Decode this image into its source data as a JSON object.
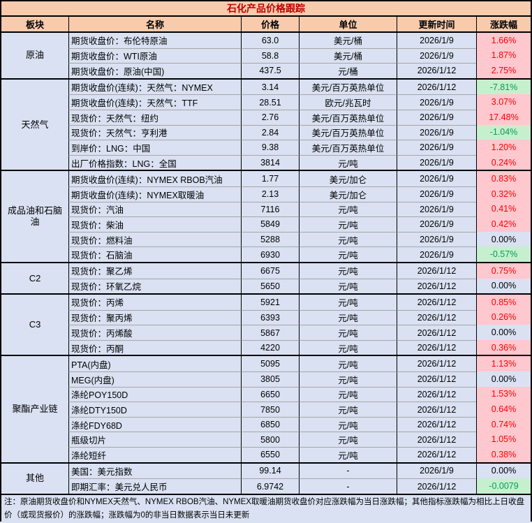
{
  "title": "石化产品价格跟踪",
  "columns": [
    "板块",
    "名称",
    "价格",
    "单位",
    "更新时间",
    "涨跌幅"
  ],
  "colors": {
    "header_bg": "#F8CBAD",
    "title_text": "#C00000",
    "body_bg": "#D9E1F2",
    "up_bg": "#FFC7CE",
    "up_text": "#FF0000",
    "down_bg": "#C6EFCE",
    "down_text": "#00A050",
    "border": "#000000",
    "row_line": "#A6A6A6"
  },
  "sections": [
    {
      "sector": "原油",
      "rows": [
        {
          "name": "期货收盘价：布伦特原油",
          "price": "63.0",
          "unit": "美元/桶",
          "updated": "2026/1/9",
          "change": "1.66%",
          "trend": "pos"
        },
        {
          "name": "期货收盘价：WTI原油",
          "price": "58.8",
          "unit": "美元/桶",
          "updated": "2026/1/9",
          "change": "1.87%",
          "trend": "pos"
        },
        {
          "name": "期货收盘价：原油(中国)",
          "price": "437.5",
          "unit": "元/桶",
          "updated": "2026/1/12",
          "change": "2.75%",
          "trend": "pos"
        }
      ]
    },
    {
      "sector": "天然气",
      "rows": [
        {
          "name": "期货收盘价(连续)：天然气：NYMEX",
          "price": "3.14",
          "unit": "美元/百万英热单位",
          "updated": "2026/1/12",
          "change": "-7.81%",
          "trend": "neg"
        },
        {
          "name": "期货收盘价(连续)：天然气：TTF",
          "price": "28.51",
          "unit": "欧元/兆瓦时",
          "updated": "2026/1/9",
          "change": "3.07%",
          "trend": "pos"
        },
        {
          "name": "现货价：天然气：纽约",
          "price": "2.76",
          "unit": "美元/百万英热单位",
          "updated": "2026/1/9",
          "change": "17.48%",
          "trend": "pos"
        },
        {
          "name": "现货价：天然气：亨利港",
          "price": "2.84",
          "unit": "美元/百万英热单位",
          "updated": "2026/1/9",
          "change": "-1.04%",
          "trend": "neg"
        },
        {
          "name": "到岸价：LNG：中国",
          "price": "9.38",
          "unit": "美元/百万英热单位",
          "updated": "2026/1/9",
          "change": "1.20%",
          "trend": "pos"
        },
        {
          "name": "出厂价格指数：LNG：全国",
          "price": "3814",
          "unit": "元/吨",
          "updated": "2026/1/9",
          "change": "0.24%",
          "trend": "pos"
        }
      ]
    },
    {
      "sector": "成品油和石脑油",
      "rows": [
        {
          "name": "期货收盘价(连续)：NYMEX RBOB汽油",
          "price": "1.77",
          "unit": "美元/加仑",
          "updated": "2026/1/9",
          "change": "0.83%",
          "trend": "pos"
        },
        {
          "name": "期货收盘价(连续)：NYMEX取暖油",
          "price": "2.13",
          "unit": "美元/加仑",
          "updated": "2026/1/9",
          "change": "0.32%",
          "trend": "pos"
        },
        {
          "name": "现货价：汽油",
          "price": "7116",
          "unit": "元/吨",
          "updated": "2026/1/9",
          "change": "0.41%",
          "trend": "pos"
        },
        {
          "name": "现货价：柴油",
          "price": "5849",
          "unit": "元/吨",
          "updated": "2026/1/9",
          "change": "0.42%",
          "trend": "pos"
        },
        {
          "name": "现货价：燃料油",
          "price": "5288",
          "unit": "元/吨",
          "updated": "2026/1/9",
          "change": "0.00%",
          "trend": "zero"
        },
        {
          "name": "现货价：石脑油",
          "price": "6930",
          "unit": "元/吨",
          "updated": "2026/1/9",
          "change": "-0.57%",
          "trend": "neg"
        }
      ]
    },
    {
      "sector": "C2",
      "rows": [
        {
          "name": "现货价：聚乙烯",
          "price": "6675",
          "unit": "元/吨",
          "updated": "2026/1/12",
          "change": "0.75%",
          "trend": "pos"
        },
        {
          "name": "现货价：环氧乙烷",
          "price": "5650",
          "unit": "元/吨",
          "updated": "2026/1/12",
          "change": "0.00%",
          "trend": "zero"
        }
      ]
    },
    {
      "sector": "C3",
      "rows": [
        {
          "name": "现货价：丙烯",
          "price": "5921",
          "unit": "元/吨",
          "updated": "2026/1/12",
          "change": "0.85%",
          "trend": "pos"
        },
        {
          "name": "现货价：聚丙烯",
          "price": "6393",
          "unit": "元/吨",
          "updated": "2026/1/12",
          "change": "0.26%",
          "trend": "pos"
        },
        {
          "name": "现货价：丙烯酸",
          "price": "5867",
          "unit": "元/吨",
          "updated": "2026/1/12",
          "change": "0.00%",
          "trend": "zero"
        },
        {
          "name": "现货价：丙酮",
          "price": "4220",
          "unit": "元/吨",
          "updated": "2026/1/12",
          "change": "0.36%",
          "trend": "pos"
        }
      ]
    },
    {
      "sector": "聚酯产业链",
      "rows": [
        {
          "name": "PTA(内盘)",
          "price": "5095",
          "unit": "元/吨",
          "updated": "2026/1/12",
          "change": "1.13%",
          "trend": "pos"
        },
        {
          "name": "MEG(内盘)",
          "price": "3805",
          "unit": "元/吨",
          "updated": "2026/1/12",
          "change": "0.00%",
          "trend": "zero"
        },
        {
          "name": "涤纶POY150D",
          "price": "6650",
          "unit": "元/吨",
          "updated": "2026/1/12",
          "change": "1.53%",
          "trend": "pos"
        },
        {
          "name": "涤纶DTY150D",
          "price": "7850",
          "unit": "元/吨",
          "updated": "2026/1/12",
          "change": "0.64%",
          "trend": "pos"
        },
        {
          "name": "涤纶FDY68D",
          "price": "6850",
          "unit": "元/吨",
          "updated": "2026/1/12",
          "change": "0.74%",
          "trend": "pos"
        },
        {
          "name": "瓶级切片",
          "price": "5800",
          "unit": "元/吨",
          "updated": "2026/1/12",
          "change": "1.05%",
          "trend": "pos"
        },
        {
          "name": "涤纶短纤",
          "price": "6550",
          "unit": "元/吨",
          "updated": "2026/1/12",
          "change": "0.38%",
          "trend": "pos"
        }
      ]
    },
    {
      "sector": "其他",
      "rows": [
        {
          "name": "美国：美元指数",
          "price": "99.14",
          "unit": "-",
          "updated": "2026/1/9",
          "change": "0.00%",
          "trend": "zero"
        },
        {
          "name": "即期汇率：美元兑人民币",
          "price": "6.9742",
          "unit": "-",
          "updated": "2026/1/12",
          "change": "-0.0079",
          "trend": "neg"
        }
      ]
    }
  ],
  "footnote": "注：原油期货收盘价和NYMEX天然气、NYMEX RBOB汽油、NYMEX取暖油期货收盘价对应涨跌幅为当日涨跌幅；其他指标涨跌幅为相比上日收盘价（或现货报价）的涨跌幅；涨跌幅为0的非当日数据表示当日未更新"
}
